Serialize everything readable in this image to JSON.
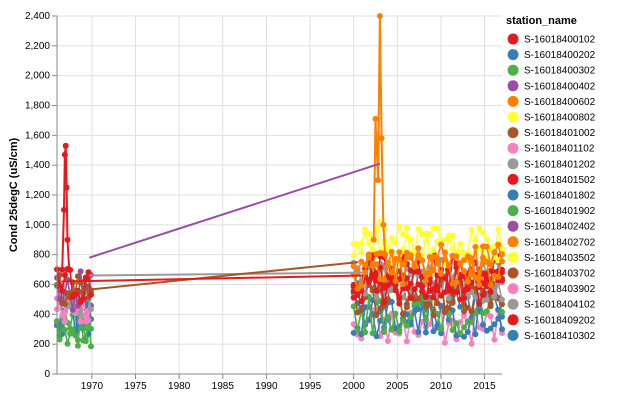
{
  "chart_data": {
    "type": "line",
    "xlabel": "",
    "ylabel": "Cond 25degC (uS/cm)",
    "xlim": [
      1966,
      2017
    ],
    "ylim": [
      0,
      2400
    ],
    "x_ticks": [
      "1970",
      "1975",
      "1980",
      "1985",
      "1990",
      "1995",
      "2000",
      "2005",
      "2010",
      "2015"
    ],
    "y_ticks": [
      "0",
      "200",
      "400",
      "600",
      "800",
      "1,000",
      "1,200",
      "1,400",
      "1,600",
      "1,800",
      "2,000",
      "2,200",
      "2,400"
    ],
    "grid": true,
    "legend_title": "station_name",
    "legend_position": "right",
    "series": [
      {
        "name": "S-16018400102",
        "color": "#e41a1c"
      },
      {
        "name": "S-16018400202",
        "color": "#377eb8"
      },
      {
        "name": "S-16018400302",
        "color": "#4daf4a"
      },
      {
        "name": "S-16018400402",
        "color": "#984ea3"
      },
      {
        "name": "S-16018400602",
        "color": "#ff7f00"
      },
      {
        "name": "S-16018400802",
        "color": "#ffff33"
      },
      {
        "name": "S-16018401002",
        "color": "#a65628"
      },
      {
        "name": "S-16018401102",
        "color": "#f781bf"
      },
      {
        "name": "S-16018401202",
        "color": "#999999"
      },
      {
        "name": "S-16018401502",
        "color": "#e41a1c"
      },
      {
        "name": "S-16018401802",
        "color": "#377eb8"
      },
      {
        "name": "S-16018401902",
        "color": "#4daf4a"
      },
      {
        "name": "S-16018402402",
        "color": "#984ea3"
      },
      {
        "name": "S-16018402702",
        "color": "#ff7f00"
      },
      {
        "name": "S-16018403502",
        "color": "#ffff33"
      },
      {
        "name": "S-16018403702",
        "color": "#a65628"
      },
      {
        "name": "S-16018403902",
        "color": "#f781bf"
      },
      {
        "name": "S-16018404102",
        "color": "#999999"
      },
      {
        "name": "S-16018409202",
        "color": "#e41a1c"
      },
      {
        "name": "S-16018410302",
        "color": "#377eb8"
      }
    ],
    "connectors": [
      {
        "series_index": 3,
        "points": [
          [
            1969.7,
            780
          ],
          [
            2003.0,
            1410
          ]
        ]
      },
      {
        "series_index": 8,
        "points": [
          [
            1969.7,
            660
          ],
          [
            2001.0,
            680
          ]
        ]
      },
      {
        "series_index": 6,
        "points": [
          [
            1967.0,
            550
          ],
          [
            2000.5,
            750
          ]
        ]
      },
      {
        "series_index": 0,
        "points": [
          [
            1966.5,
            620
          ],
          [
            2001.0,
            660
          ]
        ]
      }
    ],
    "early_cluster": {
      "x_range": [
        1966.0,
        1969.9
      ],
      "spike_series": 0,
      "spike_peak": [
        1967.0,
        1530
      ]
    },
    "late_cluster": {
      "x_range": [
        2000.0,
        2017.0
      ],
      "spike_series": 4,
      "spike_peak": [
        2003.0,
        2400
      ]
    }
  }
}
